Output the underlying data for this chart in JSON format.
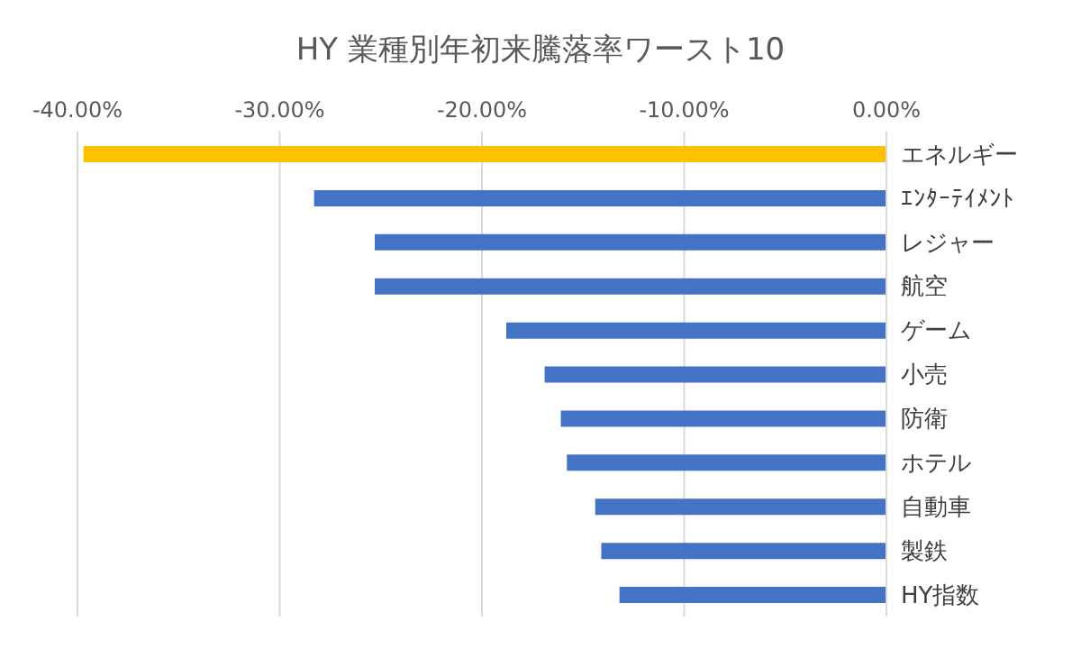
{
  "chart_data": {
    "type": "bar",
    "orientation": "horizontal",
    "title": "HY 業種別年初来騰落率ワースト10",
    "categories": [
      "エネルギー",
      "ｴﾝﾀｰﾃｲﾒﾝﾄ",
      "レジャー",
      "航空",
      "ゲーム",
      "小売",
      "防衛",
      "ホテル",
      "自動車",
      "製鉄",
      "HY指数"
    ],
    "values": [
      -39.7,
      -28.3,
      -25.3,
      -25.3,
      -18.8,
      -16.9,
      -16.1,
      -15.8,
      -14.4,
      -14.1,
      -13.2
    ],
    "colors": [
      "#ffc000",
      "#4472c4",
      "#4472c4",
      "#4472c4",
      "#4472c4",
      "#4472c4",
      "#4472c4",
      "#4472c4",
      "#4472c4",
      "#4472c4",
      "#4472c4"
    ],
    "xlim": [
      -40,
      0
    ],
    "xticks": [
      {
        "value": -40,
        "label": "-40.00%"
      },
      {
        "value": -30,
        "label": "-30.00%"
      },
      {
        "value": -20,
        "label": "-20.00%"
      },
      {
        "value": -10,
        "label": "-10.00%"
      },
      {
        "value": 0,
        "label": "0.00%"
      }
    ],
    "grid": "x"
  }
}
